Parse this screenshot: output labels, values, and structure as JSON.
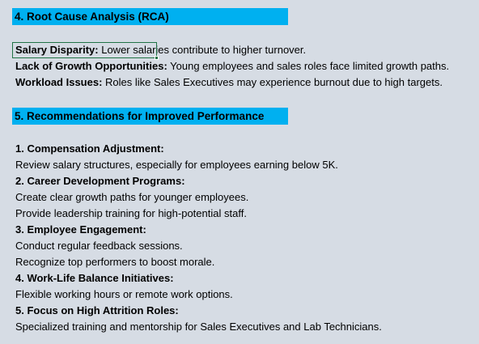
{
  "rca": {
    "heading": "4. Root Cause Analysis (RCA)",
    "items": [
      {
        "label": "Salary Disparity:",
        "text": " Lower salaries contribute to higher turnover."
      },
      {
        "label": "Lack of Growth Opportunities:",
        "text": " Young employees and sales roles face limited growth paths."
      },
      {
        "label": "Workload Issues:",
        "text": " Roles like Sales Executives may experience burnout due to high targets."
      }
    ]
  },
  "recommendations": {
    "heading": "5. Recommendations for Improved Performance",
    "sections": [
      {
        "title": "1. Compensation Adjustment:",
        "lines": [
          "Review salary structures, especially for employees earning below 5K."
        ]
      },
      {
        "title": "2. Career Development Programs:",
        "lines": [
          "Create clear growth paths for younger employees.",
          "Provide leadership training for high-potential staff."
        ]
      },
      {
        "title": "3. Employee Engagement:",
        "lines": [
          "Conduct regular feedback sessions.",
          "Recognize top performers to boost morale."
        ]
      },
      {
        "title": "4. Work-Life Balance Initiatives:",
        "lines": [
          "Flexible working hours or remote work options."
        ]
      },
      {
        "title": "5. Focus on High Attrition Roles:",
        "lines": [
          "Specialized training and mentorship for Sales Executives and Lab Technicians."
        ]
      }
    ]
  },
  "colors": {
    "sheet_background": "#d6dce4",
    "heading_fill": "#00b0f0",
    "selection_border": "#217346"
  }
}
